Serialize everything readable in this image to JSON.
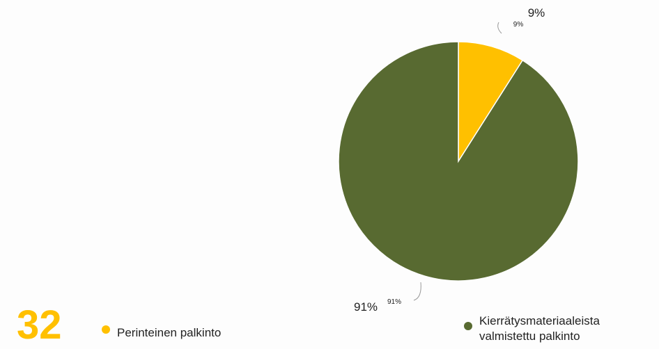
{
  "chart_data": {
    "type": "pie",
    "categories": [
      "Perinteinen palkinto",
      "Kierrätysmateriaaleista valmistettu palkinto"
    ],
    "values": [
      9,
      91
    ],
    "value_labels": [
      "9%",
      "91%"
    ],
    "colors": [
      "#ffc000",
      "#586a31"
    ],
    "big_number": "32"
  }
}
